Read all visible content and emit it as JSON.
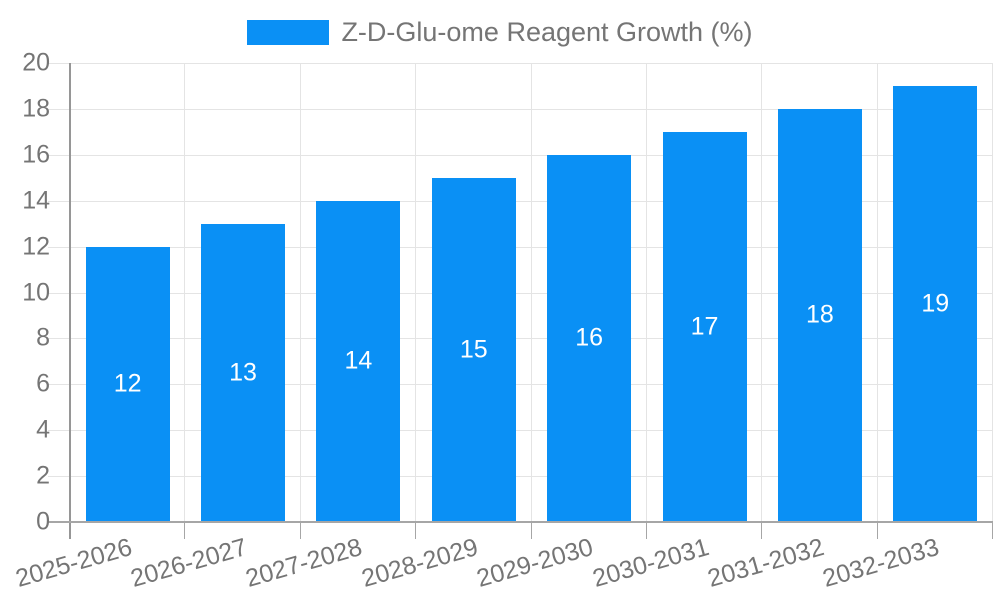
{
  "chart_data": {
    "type": "bar",
    "title": "",
    "legend_label": "Z-D-Glu-ome Reagent Growth (%)",
    "legend_position": "top",
    "categories": [
      "2025-2026",
      "2026-2027",
      "2027-2028",
      "2028-2029",
      "2029-2030",
      "2030-2031",
      "2031-2032",
      "2032-2033"
    ],
    "values": [
      12,
      13,
      14,
      15,
      16,
      17,
      18,
      19
    ],
    "value_labels_shown": true,
    "xlabel": "",
    "ylabel": "",
    "ylim": [
      0,
      20
    ],
    "ytick_step": 2,
    "yticks": [
      0,
      2,
      4,
      6,
      8,
      10,
      12,
      14,
      16,
      18,
      20
    ],
    "grid": true,
    "xtick_rotation_deg": -16,
    "colors": {
      "bar": "#0a90f5",
      "value_label": "#ffffff",
      "axis_text": "#757575",
      "grid_line": "#e4e4e4",
      "axis_line": "#a6a6a6",
      "y_axis_line": "#969696",
      "background": "#ffffff"
    }
  }
}
